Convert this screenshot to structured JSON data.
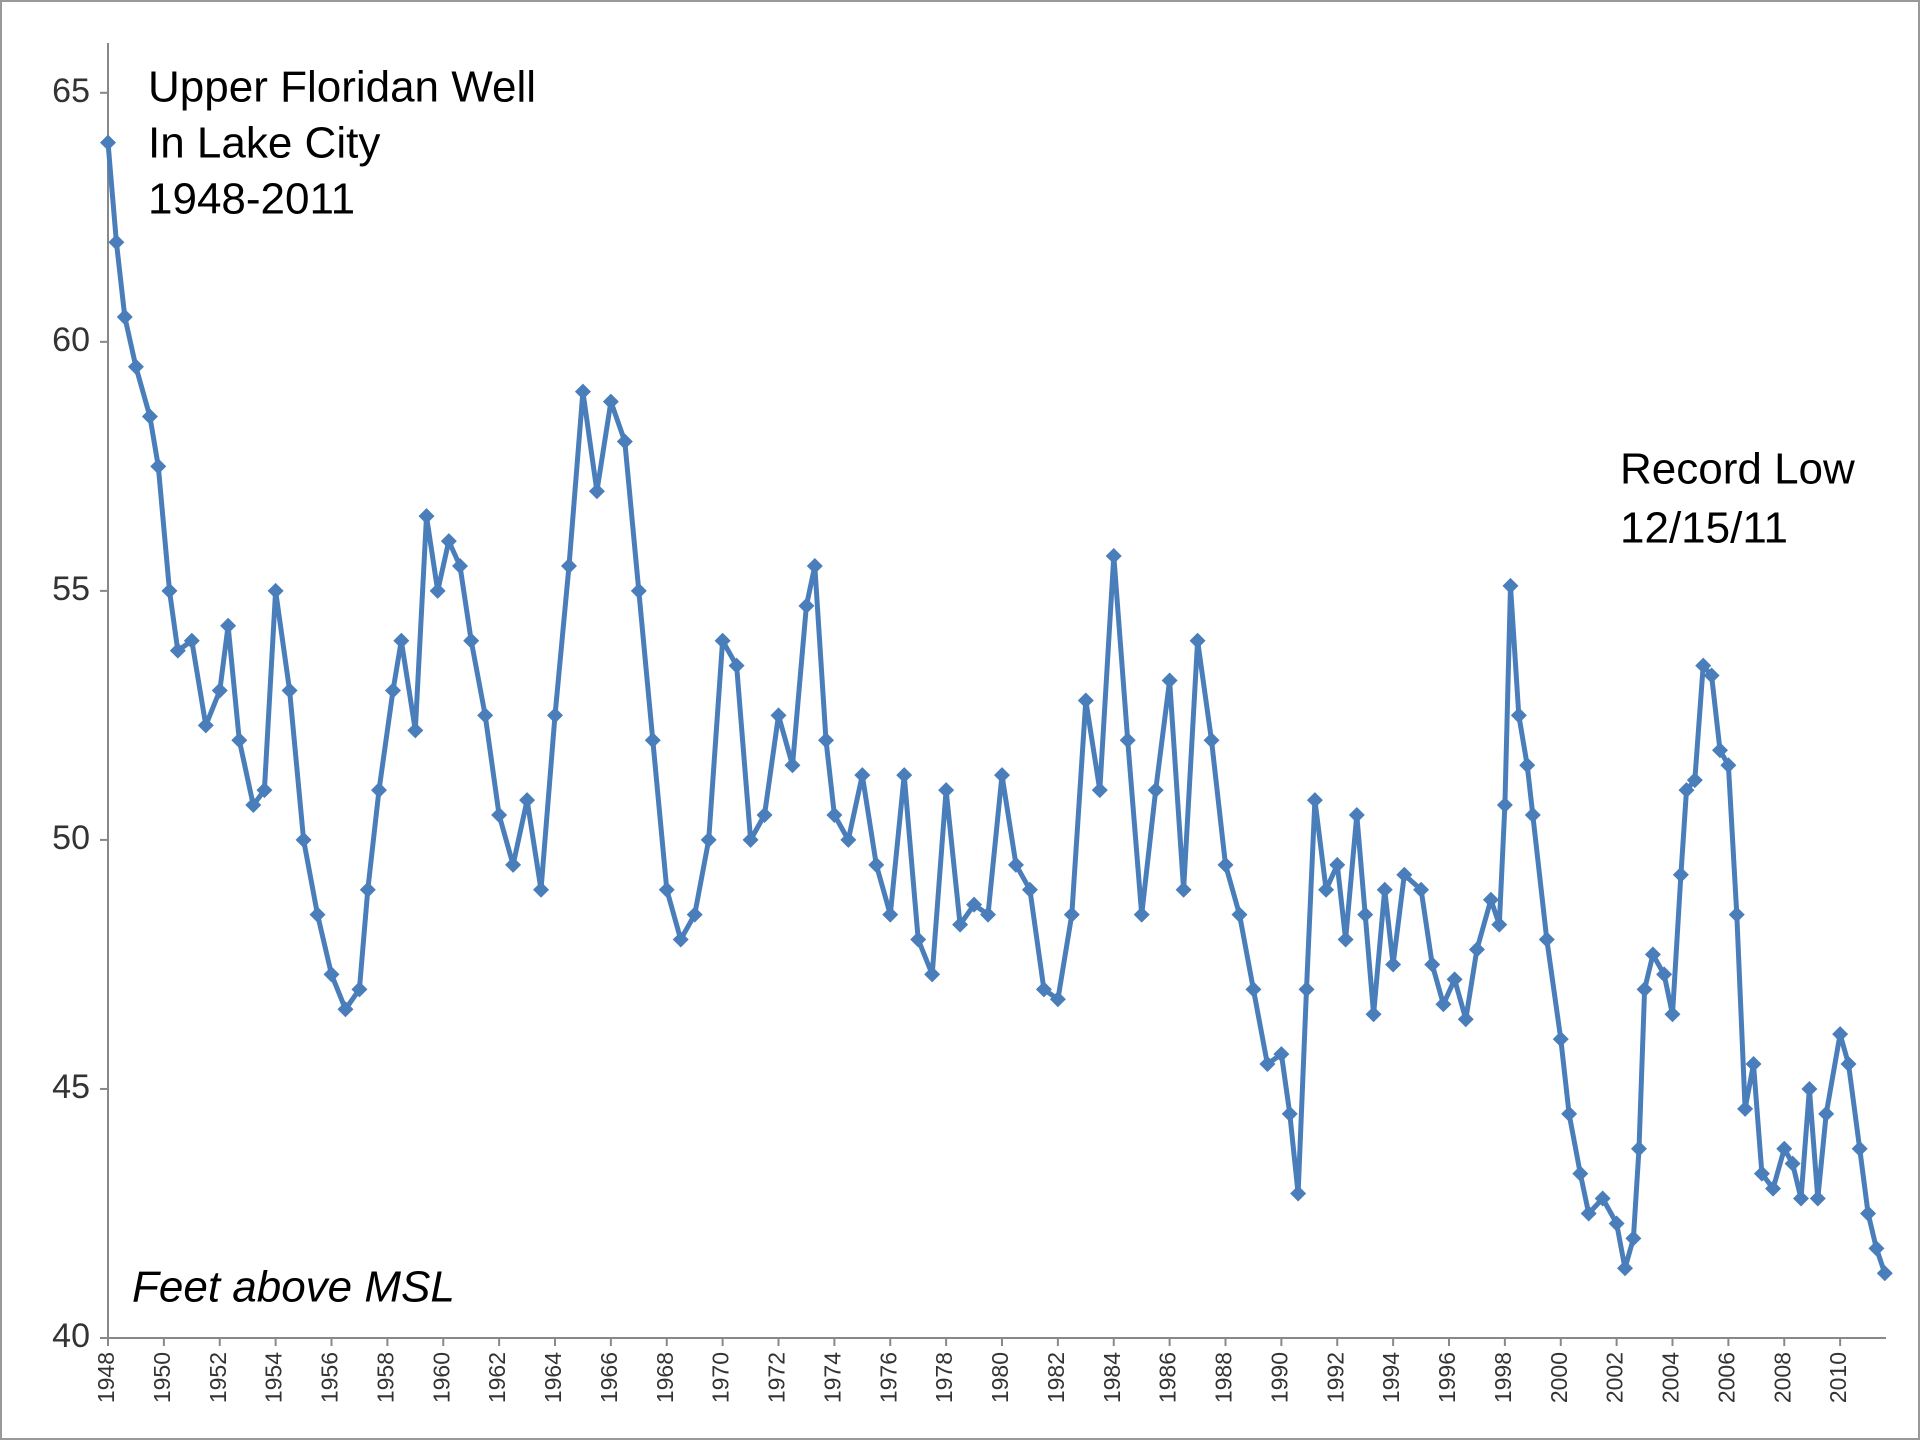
{
  "chart_data": {
    "type": "line",
    "title": [
      "Upper Floridan Well",
      "In Lake City",
      "1948-2011"
    ],
    "annotation": [
      "Record Low",
      "12/15/11"
    ],
    "ylabel": "Feet above MSL",
    "color": "#4a7ebb",
    "xlim": [
      1948,
      2012
    ],
    "ylim": [
      40,
      66
    ],
    "xticks": [
      1948,
      1950,
      1952,
      1954,
      1956,
      1958,
      1960,
      1962,
      1964,
      1966,
      1968,
      1970,
      1972,
      1974,
      1976,
      1978,
      1980,
      1982,
      1984,
      1986,
      1988,
      1990,
      1992,
      1994,
      1996,
      1998,
      2000,
      2002,
      2004,
      2006,
      2008,
      2010
    ],
    "yticks": [
      40,
      45,
      50,
      55,
      60,
      65
    ],
    "x": [
      1948.0,
      1948.3,
      1948.6,
      1949,
      1949.5,
      1949.8,
      1950.2,
      1950.5,
      1951,
      1951.5,
      1952,
      1952.3,
      1952.7,
      1953.2,
      1953.6,
      1954,
      1954.5,
      1955,
      1955.5,
      1956,
      1956.5,
      1957,
      1957.3,
      1957.7,
      1958.2,
      1958.5,
      1959,
      1959.4,
      1959.8,
      1960.2,
      1960.6,
      1961,
      1961.5,
      1962,
      1962.5,
      1963,
      1963.5,
      1964,
      1964.5,
      1965,
      1965.5,
      1966,
      1966.5,
      1967,
      1967.5,
      1968,
      1968.5,
      1969,
      1969.5,
      1970,
      1970.5,
      1971,
      1971.5,
      1972,
      1972.5,
      1973,
      1973.3,
      1973.7,
      1974,
      1974.5,
      1975,
      1975.5,
      1976,
      1976.5,
      1977,
      1977.5,
      1978,
      1978.5,
      1979,
      1979.5,
      1980,
      1980.5,
      1981,
      1981.5,
      1982,
      1982.5,
      1983,
      1983.5,
      1984,
      1984.5,
      1985,
      1985.5,
      1986,
      1986.5,
      1987,
      1987.5,
      1988,
      1988.5,
      1989,
      1989.5,
      1990,
      1990.3,
      1990.6,
      1990.9,
      1991.2,
      1991.6,
      1992,
      1992.3,
      1992.7,
      1993,
      1993.3,
      1993.7,
      1994,
      1994.4,
      1995,
      1995.4,
      1995.8,
      1996.2,
      1996.6,
      1997,
      1997.5,
      1997.8,
      1998,
      1998.2,
      1998.5,
      1998.8,
      1999,
      1999.5,
      2000,
      2000.3,
      2000.7,
      2001,
      2001.5,
      2002,
      2002.3,
      2002.6,
      2002.8,
      2003,
      2003.3,
      2003.7,
      2004,
      2004.3,
      2004.5,
      2004.8,
      2005.1,
      2005.4,
      2005.7,
      2006,
      2006.3,
      2006.6,
      2006.9,
      2007.2,
      2007.6,
      2008,
      2008.3,
      2008.6,
      2008.9,
      2009.2,
      2009.5,
      2010,
      2010.3,
      2010.7,
      2011,
      2011.3,
      2011.6
    ],
    "values": [
      64,
      62,
      60.5,
      59.5,
      58.5,
      57.5,
      55,
      53.8,
      54,
      52.3,
      53,
      54.3,
      52,
      50.7,
      51,
      55,
      53,
      50,
      48.5,
      47.3,
      46.6,
      47,
      49,
      51,
      53,
      54,
      52.2,
      56.5,
      55,
      56,
      55.5,
      54,
      52.5,
      50.5,
      49.5,
      50.8,
      49,
      52.5,
      55.5,
      59,
      57,
      58.8,
      58,
      55,
      52,
      49,
      48,
      48.5,
      50,
      54,
      53.5,
      50,
      50.5,
      52.5,
      51.5,
      54.7,
      55.5,
      52,
      50.5,
      50,
      51.3,
      49.5,
      48.5,
      51.3,
      48,
      47.3,
      51,
      48.3,
      48.7,
      48.5,
      51.3,
      49.5,
      49,
      47,
      46.8,
      48.5,
      52.8,
      51,
      55.7,
      52,
      48.5,
      51,
      53.2,
      49,
      54,
      52,
      49.5,
      48.5,
      47,
      45.5,
      45.7,
      44.5,
      42.9,
      47,
      50.8,
      49,
      49.5,
      48,
      50.5,
      48.5,
      46.5,
      49,
      47.5,
      49.3,
      49,
      47.5,
      46.7,
      47.2,
      46.4,
      47.8,
      48.8,
      48.3,
      50.7,
      55.1,
      52.5,
      51.5,
      50.5,
      48,
      46,
      44.5,
      43.3,
      42.5,
      42.8,
      42.3,
      41.4,
      42,
      43.8,
      47,
      47.7,
      47.3,
      46.5,
      49.3,
      51,
      51.2,
      53.5,
      53.3,
      51.8,
      51.5,
      48.5,
      44.6,
      45.5,
      43.3,
      43,
      43.8,
      43.5,
      42.8,
      45,
      42.8,
      44.5,
      46.1,
      45.5,
      43.8,
      42.5,
      41.8,
      41.3
    ]
  }
}
